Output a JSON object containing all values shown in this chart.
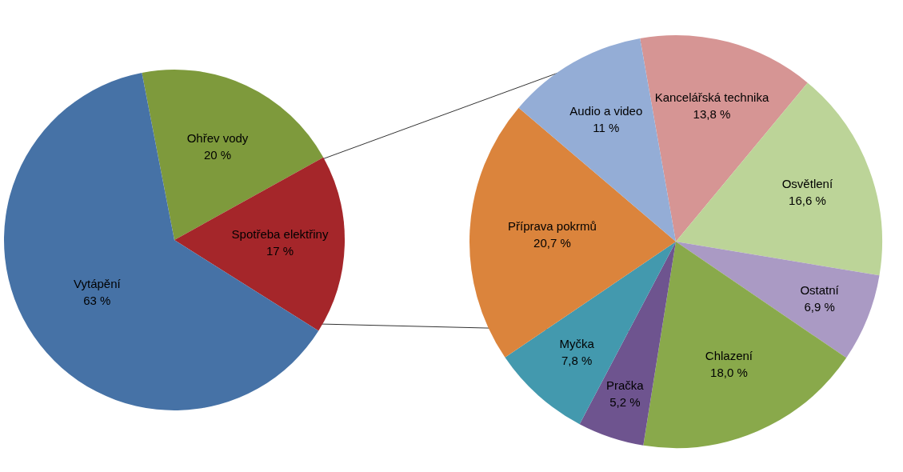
{
  "chart_data": [
    {
      "type": "pie",
      "categories": [
        "Ohřev vody",
        "Spotřeba elektřiny",
        "Vytápění"
      ],
      "values": [
        20,
        17,
        63
      ],
      "colors": [
        "#7e9a3c",
        "#a5262a",
        "#4672a6"
      ],
      "value_labels": [
        "20 %",
        "17 %",
        "63 %"
      ],
      "legend": false
    },
    {
      "type": "pie",
      "categories": [
        "Kancelářská technika",
        "Osvětlení",
        "Ostatní",
        "Chlazení",
        "Pračka",
        "Myčka",
        "Příprava pokrmů",
        "Audio a video"
      ],
      "values": [
        13.8,
        16.6,
        6.9,
        18.0,
        5.2,
        7.8,
        20.7,
        11
      ],
      "colors": [
        "#d69594",
        "#bcd498",
        "#aa9ac4",
        "#89a94b",
        "#6e548f",
        "#4399ae",
        "#db843c",
        "#94add6"
      ],
      "value_labels": [
        "13,8 %",
        "16,6 %",
        "6,9 %",
        "18,0 %",
        "5,2 %",
        "7,8 %",
        "20,7 %",
        "11 %"
      ],
      "legend": false
    }
  ]
}
